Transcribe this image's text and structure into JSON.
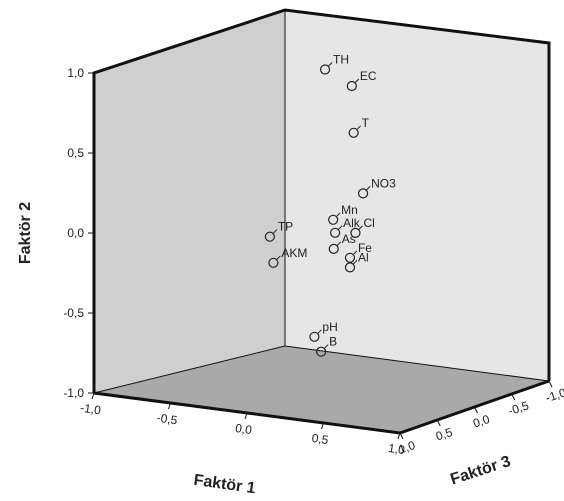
{
  "chart_data": {
    "type": "scatter",
    "title": "",
    "xlabel": "Faktör 1",
    "ylabel": "Faktör 2",
    "zlabel": "Faktör 3",
    "xlim": [
      -1.0,
      1.0
    ],
    "ylim": [
      -1.0,
      1.0
    ],
    "zlim": [
      -1.0,
      1.0
    ],
    "x_ticks": [
      "-1,0",
      "-0,5",
      "0,0",
      "0,5",
      "1,0"
    ],
    "y_ticks": [
      "1,0",
      "0,5",
      "0,0",
      "-0,5",
      "-1,0"
    ],
    "z_ticks": [
      "1,0",
      "0,5",
      "0,0",
      "-0,5",
      "-1,0"
    ],
    "grid": false,
    "legend": "none",
    "marker": "open-circle",
    "colors": {
      "back_wall": "#e6e6e6",
      "left_wall": "#cfcfcf",
      "floor": "#a9a9a9",
      "frame": "#111111"
    },
    "points": [
      {
        "label": "TH",
        "x": 0.05,
        "y": 0.95,
        "z": 0.5
      },
      {
        "label": "EC",
        "x": 0.38,
        "y": 0.86,
        "z": 0.55
      },
      {
        "label": "T",
        "x": 0.5,
        "y": 0.59,
        "z": 0.45
      },
      {
        "label": "NO3",
        "x": 0.68,
        "y": 0.23,
        "z": 0.4
      },
      {
        "label": "Mn",
        "x": 0.4,
        "y": 0.07,
        "z": 0.25
      },
      {
        "label": "As",
        "x": 0.55,
        "y": -0.08,
        "z": 0.1
      },
      {
        "label": "Alk",
        "x": 0.38,
        "y": -0.02,
        "z": 0.3
      },
      {
        "label": "Cl",
        "x": 0.95,
        "y": 0.06,
        "z": 0.0
      },
      {
        "label": "Fe",
        "x": 0.92,
        "y": -0.09,
        "z": -0.05
      },
      {
        "label": "Al",
        "x": 0.92,
        "y": -0.15,
        "z": -0.05
      },
      {
        "label": "TP",
        "x": -0.35,
        "y": -0.06,
        "z": 0.1
      },
      {
        "label": "AKM",
        "x": -0.3,
        "y": -0.22,
        "z": 0.1
      },
      {
        "label": "pH",
        "x": -0.1,
        "y": -0.73,
        "z": 0.5
      },
      {
        "label": "B",
        "x": 0.75,
        "y": -0.65,
        "z": -0.3
      }
    ]
  }
}
